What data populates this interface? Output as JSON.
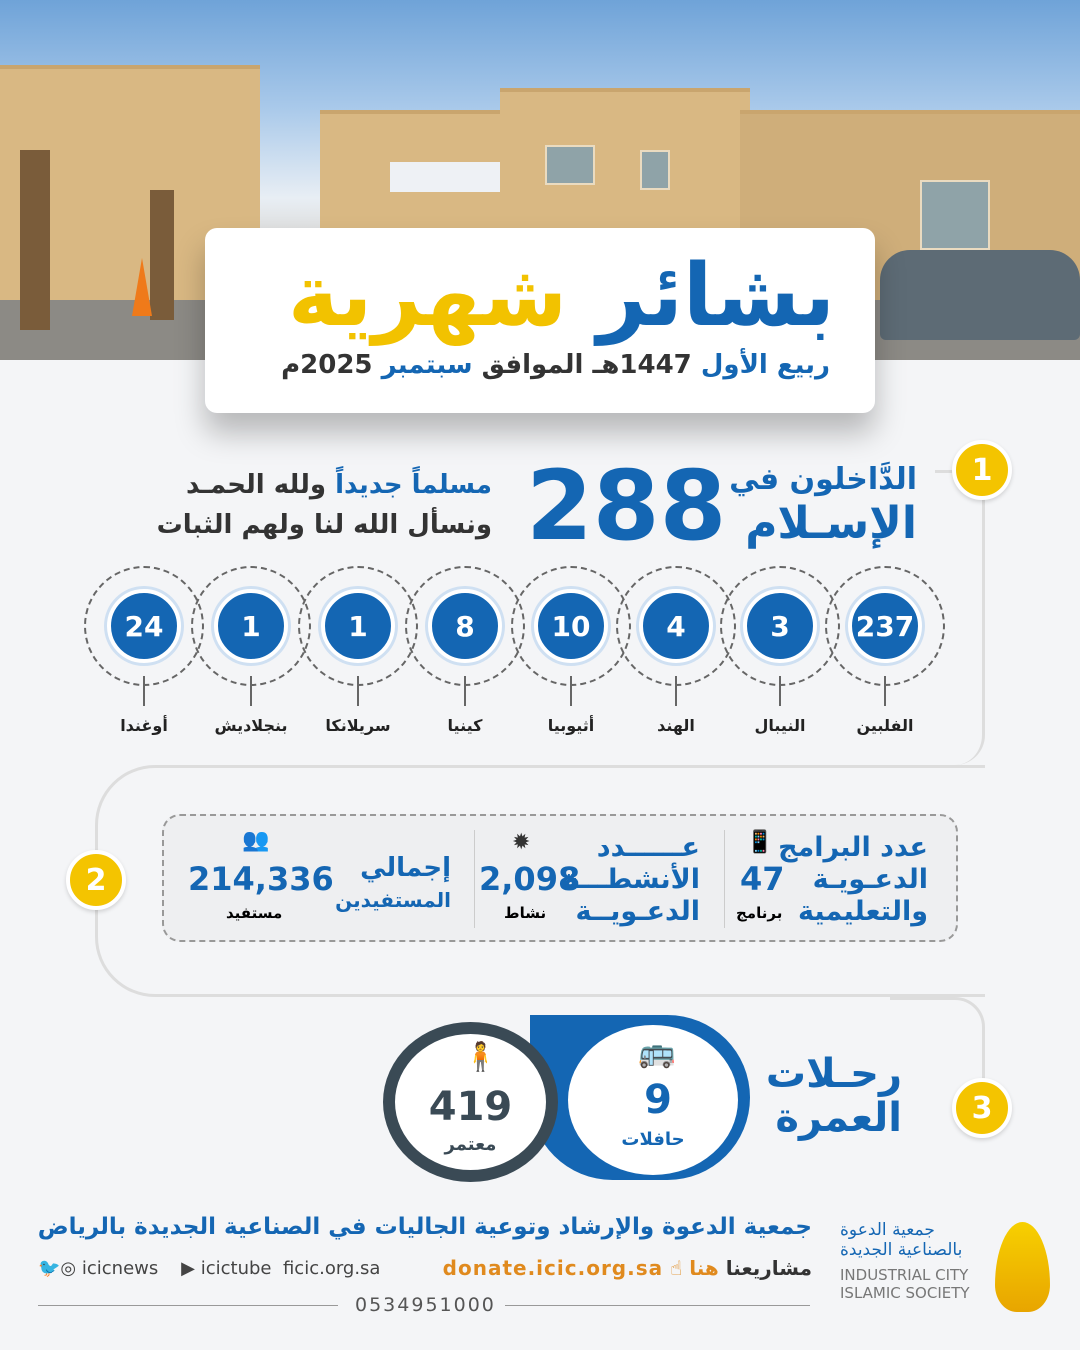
{
  "header": {
    "title_blue": "بشائر",
    "title_gold": "شهرية",
    "subtitle_blue1": "ربيع الأول",
    "subtitle_dark1": "1447هـ الموافق",
    "subtitle_blue2": "سبتمبر",
    "subtitle_dark2": "2025م"
  },
  "section1": {
    "number": "1",
    "heading_line1": "الدَّاخلون في",
    "heading_line2": "الإسـلام",
    "total": "288",
    "text_line1_blue": "مسلماً جديداً",
    "text_line1_dark": "ولله الحمـد",
    "text_line2": "ونسأل الله لنا ولهم الثبات",
    "countries": [
      {
        "name": "الفلبين",
        "value": "237"
      },
      {
        "name": "النيبال",
        "value": "3"
      },
      {
        "name": "الهند",
        "value": "4"
      },
      {
        "name": "أثيوبيا",
        "value": "10"
      },
      {
        "name": "كينيا",
        "value": "8"
      },
      {
        "name": "سريلانكا",
        "value": "1"
      },
      {
        "name": "بنجلاديش",
        "value": "1"
      },
      {
        "name": "أوغندا",
        "value": "24"
      }
    ]
  },
  "section2": {
    "number": "2",
    "programs": {
      "label": [
        "عدد البرامج",
        "الدعـويـة",
        "والتعليمية"
      ],
      "value": "47",
      "unit": "برنامج",
      "icon": "phone-mic-icon"
    },
    "activities": {
      "label": [
        "عــــــدد",
        "الأنشطـــة",
        "الدعـويــة"
      ],
      "value": "2,098",
      "unit": "نشاط",
      "icon": "mic-badge-icon"
    },
    "beneficiaries": {
      "label": [
        "إجمالي",
        "المستفيدين"
      ],
      "value": "214,336",
      "unit": "مستفيد",
      "icon": "people-icon"
    }
  },
  "section3": {
    "number": "3",
    "heading_line1": "رحـلات",
    "heading_line2": "العمرة",
    "buses": {
      "value": "9",
      "unit": "حافلات",
      "icon": "bus-icon"
    },
    "pilgrims": {
      "value": "419",
      "unit": "معتمر",
      "icon": "pilgrim-icon"
    }
  },
  "footer": {
    "org_name": "جمعية الدعوة والإرشاد وتوعية الجاليات في الصناعية الجديدة بالرياض",
    "projects_label": "مشاريعنا",
    "here": "هنا",
    "donate_url": "donate.icic.org.sa",
    "website": "icic.org.sa",
    "youtube": "icictube",
    "social": "icicnews",
    "phone": "0534951000",
    "logo_ar1": "جمعية الدعوة",
    "logo_ar2": "بالصناعية الجديدة",
    "logo_en1": "INDUSTRIAL CITY",
    "logo_en2": "ISLAMIC SOCIETY"
  },
  "colors": {
    "blue": "#1466b3",
    "gold": "#f4c400",
    "dark": "#3a4a55"
  }
}
